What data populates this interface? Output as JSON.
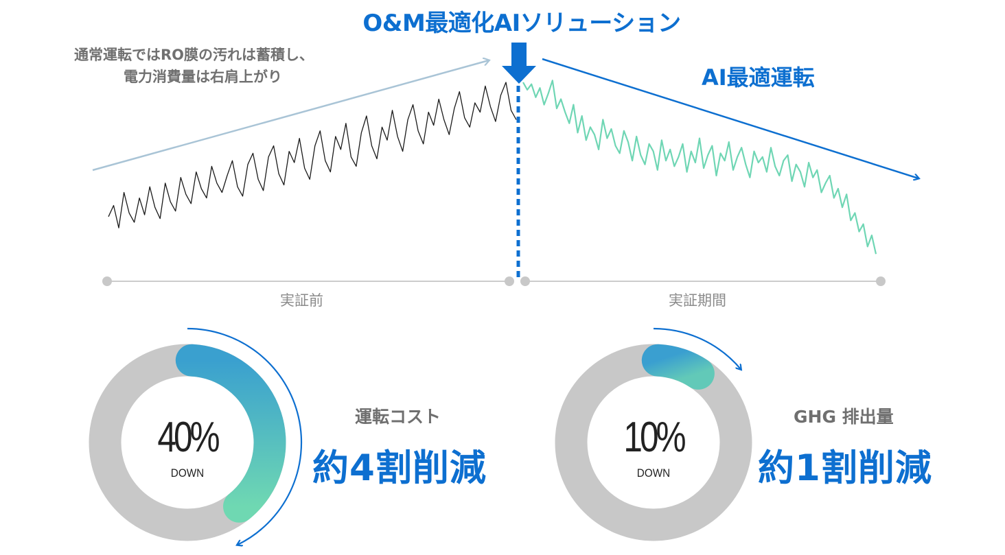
{
  "headline": "O&M最適化AIソリューション",
  "annotation": {
    "line1": "通常運転ではRO膜の汚れは蓄積し、",
    "line2": "電力消費量は右肩上がり",
    "ai_label": "AI最適運転"
  },
  "colors": {
    "accent": "#0d6fd0",
    "before_line": "#1a1a1a",
    "after_line": "#6fd6b4",
    "trend_before": "#a9c4d6",
    "ring_gray": "#c8c8c8"
  },
  "chart_data": {
    "type": "line",
    "title": "",
    "xlabel": "",
    "ylabel": "",
    "periods": [
      "実証前",
      "実証期間"
    ],
    "series": [
      {
        "values": [
          28,
          34,
          22,
          41,
          30,
          25,
          38,
          29,
          44,
          33,
          27,
          46,
          36,
          31,
          49,
          40,
          35,
          52,
          43,
          38,
          55,
          46,
          41,
          50,
          58,
          44,
          39,
          56,
          62,
          48,
          42,
          60,
          66,
          51,
          45,
          63,
          57,
          70,
          54,
          48,
          66,
          74,
          58,
          52,
          71,
          64,
          78,
          60,
          55,
          73,
          82,
          66,
          59,
          76,
          69,
          85,
          71,
          63,
          80,
          88,
          74,
          67,
          84,
          77,
          91,
          80,
          72,
          86,
          95,
          81,
          76,
          89,
          84,
          98,
          87,
          79,
          93,
          100,
          85,
          80
        ]
      },
      {
        "values": [
          100,
          96,
          99,
          92,
          97,
          88,
          94,
          101,
          86,
          91,
          84,
          78,
          88,
          73,
          82,
          69,
          76,
          72,
          64,
          80,
          70,
          75,
          66,
          62,
          74,
          68,
          58,
          71,
          61,
          56,
          67,
          63,
          53,
          69,
          58,
          64,
          55,
          60,
          67,
          52,
          63,
          57,
          70,
          54,
          61,
          66,
          50,
          62,
          58,
          68,
          53,
          60,
          65,
          56,
          49,
          63,
          57,
          60,
          52,
          65,
          55,
          50,
          58,
          61,
          47,
          56,
          52,
          44,
          57,
          49,
          53,
          41,
          46,
          50,
          38,
          43,
          33,
          40,
          26,
          30,
          20,
          24,
          12,
          18,
          8
        ]
      }
    ]
  },
  "donuts": [
    {
      "percent_label": "40%",
      "sub": "DOWN",
      "category": "運転コスト",
      "result": "約4割削減",
      "value": 0.4
    },
    {
      "percent_label": "10%",
      "sub": "DOWN",
      "category": "GHG 排出量",
      "result": "約1割削減",
      "value": 0.1
    }
  ]
}
